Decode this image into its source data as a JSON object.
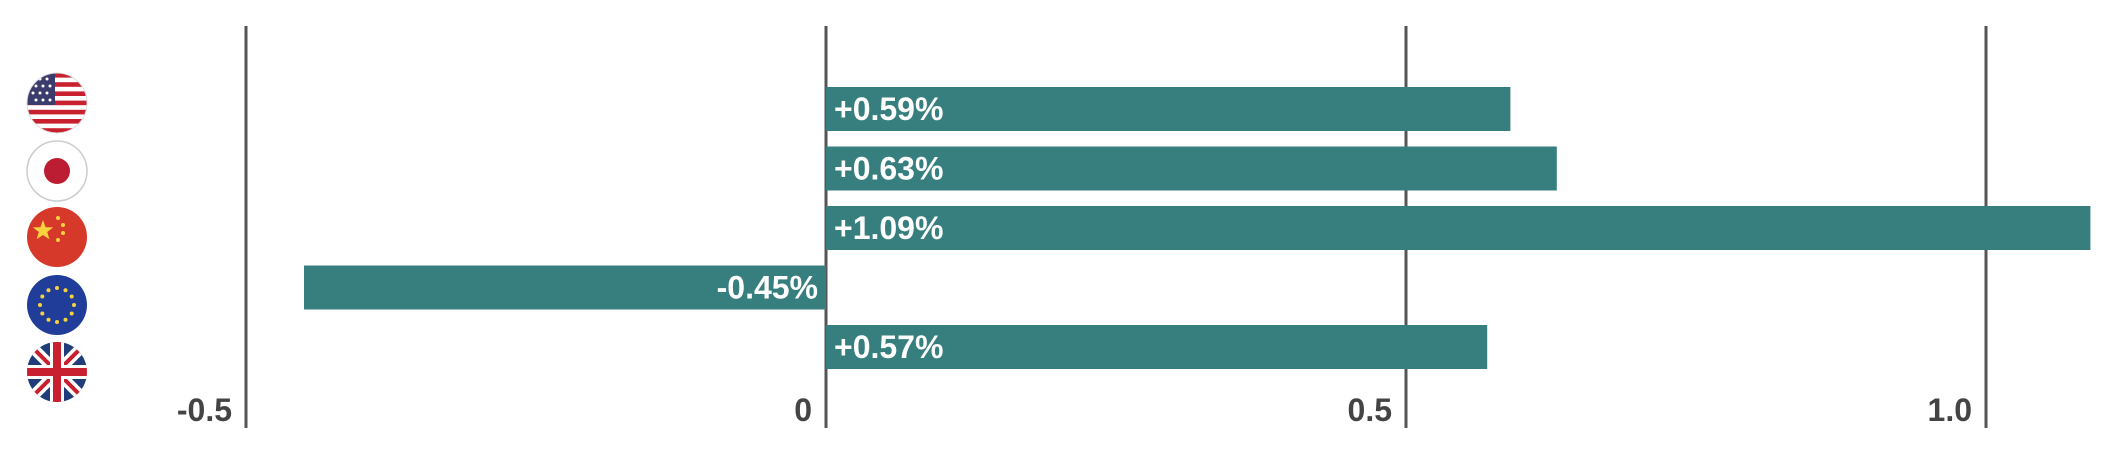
{
  "chart_data": {
    "type": "bar",
    "orientation": "horizontal",
    "categories": [
      "United States",
      "Japan",
      "China",
      "Euro Area",
      "United Kingdom"
    ],
    "values": [
      0.59,
      0.63,
      1.09,
      -0.45,
      0.57
    ],
    "value_labels": [
      "+0.59%",
      "+0.63%",
      "+1.09%",
      "-0.45%",
      "+0.57%"
    ],
    "category_icons": [
      "us-flag-icon",
      "japan-flag-icon",
      "china-flag-icon",
      "eu-flag-icon",
      "uk-flag-icon"
    ],
    "xlim": [
      -0.5,
      1.1
    ],
    "xticks": [
      {
        "value": -0.5,
        "label": "-0.5"
      },
      {
        "value": 0,
        "label": "0"
      },
      {
        "value": 0.5,
        "label": "0.5"
      },
      {
        "value": 1.0,
        "label": "1.0"
      }
    ],
    "grid": "vertical lines at ticks",
    "colors": {
      "bar": "#367f7e",
      "gridline": "#555555",
      "tick_text": "#444444",
      "bar_text": "#ffffff"
    }
  }
}
